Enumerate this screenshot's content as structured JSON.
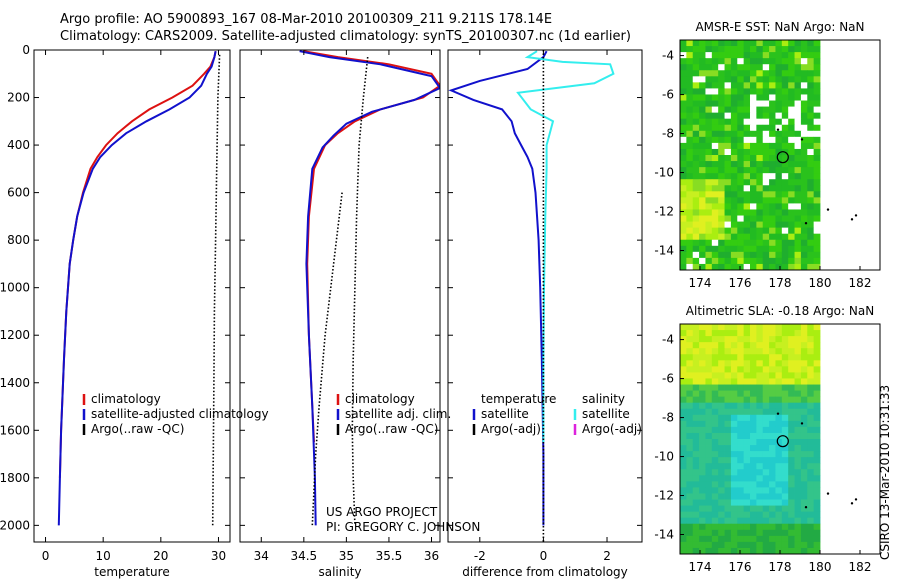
{
  "header": {
    "line1": "Argo profile: AO 5900893_167 08-Mar-2010 20100309_211 9.211S 178.14E",
    "line2": "Climatology: CARS2009. Satellite-adjusted climatology: synTS_20100307.nc (1d earlier)"
  },
  "footer": {
    "project": "US ARGO PROJECT",
    "pi": "PI: GREGORY C. JOHNSON",
    "stamp": "CSIRO 13-Mar-2010 10:31:33"
  },
  "colors": {
    "red": "#dd1111",
    "blue": "#1111cc",
    "cyan": "#33eeee",
    "magenta": "#dd22dd",
    "black": "#000000"
  },
  "chart_data": [
    {
      "id": "temperature",
      "type": "line",
      "xlabel": "temperature",
      "ylabel": "",
      "xlim": [
        -2,
        32
      ],
      "ylim": [
        2070,
        0
      ],
      "xticks": [
        0,
        10,
        20,
        30
      ],
      "yticks": [
        0,
        200,
        400,
        600,
        800,
        1000,
        1200,
        1400,
        1600,
        1800,
        2000
      ],
      "legend": [
        "climatology",
        "satellite-adjusted climatology",
        "Argo(..raw -QC)"
      ],
      "series": [
        {
          "name": "climatology",
          "color": "red",
          "style": "solid",
          "x": [
            29.5,
            29.3,
            28.6,
            27.5,
            25.5,
            22,
            18,
            15,
            12.5,
            10.5,
            9,
            7.8,
            6.5,
            5.5,
            4.8,
            4.2,
            3.6,
            3.2,
            2.7,
            2.5
          ],
          "y": [
            5,
            30,
            70,
            100,
            150,
            200,
            250,
            300,
            350,
            400,
            450,
            500,
            600,
            700,
            800,
            900,
            1100,
            1300,
            1600,
            1800
          ]
        },
        {
          "name": "satellite-adjusted climatology",
          "color": "blue",
          "style": "solid",
          "x": [
            29.5,
            29.3,
            28.8,
            28,
            27,
            25,
            21.5,
            17.5,
            14,
            11.5,
            9.5,
            8.2,
            6.6,
            5.5,
            4.8,
            4.2,
            3.6,
            3.2,
            2.7,
            2.5,
            2.3
          ],
          "y": [
            5,
            30,
            70,
            100,
            150,
            200,
            250,
            300,
            350,
            400,
            450,
            500,
            600,
            700,
            800,
            900,
            1100,
            1300,
            1600,
            1800,
            2000
          ]
        },
        {
          "name": "Argo(..raw -QC)",
          "color": "black",
          "style": "dotted",
          "x": [
            30.2,
            29.9,
            29.7,
            29.5,
            29.3,
            29.2,
            29.1,
            29
          ],
          "y": [
            20,
            200,
            500,
            800,
            1100,
            1400,
            1700,
            2000
          ]
        }
      ]
    },
    {
      "id": "salinity",
      "type": "line",
      "xlabel": "salinity",
      "ylabel": "",
      "xlim": [
        33.75,
        36.1
      ],
      "ylim": [
        2070,
        0
      ],
      "xticks": [
        34,
        34.5,
        35,
        35.5,
        36
      ],
      "xticklabels": [
        "34",
        "34.5",
        "35",
        "35.5",
        "36"
      ],
      "legend": [
        "climatology",
        "satellite adj. clim.",
        "Argo(..raw -QC)"
      ],
      "series": [
        {
          "name": "climatology",
          "color": "red",
          "style": "solid",
          "x": [
            34.5,
            34.9,
            35.5,
            36,
            36.1,
            35.9,
            35.4,
            35.1,
            34.9,
            34.75,
            34.62,
            34.56,
            34.54,
            34.56,
            34.6,
            34.62
          ],
          "y": [
            5,
            30,
            60,
            100,
            150,
            200,
            250,
            300,
            350,
            400,
            500,
            700,
            900,
            1200,
            1500,
            1650
          ]
        },
        {
          "name": "satellite adj. clim.",
          "color": "blue",
          "style": "solid",
          "x": [
            34.45,
            34.8,
            35.4,
            36,
            36.1,
            35.8,
            35.3,
            35,
            34.85,
            34.72,
            34.6,
            34.55,
            34.53,
            34.56,
            34.6,
            34.63,
            34.64
          ],
          "y": [
            5,
            30,
            60,
            110,
            160,
            210,
            260,
            310,
            360,
            410,
            500,
            700,
            900,
            1200,
            1500,
            1800,
            2000
          ]
        },
        {
          "name": "Argo(..raw -QC)",
          "color": "black",
          "style": "dotted",
          "x": [
            35.25,
            35.2,
            35.15,
            35.12,
            35.1,
            35.08,
            35.07,
            35.08,
            35.1
          ],
          "y": [
            30,
            200,
            400,
            700,
            1000,
            1300,
            1600,
            1800,
            2000
          ]
        },
        {
          "name": "Argo(..raw -QC) deep",
          "color": "black",
          "style": "dotted",
          "x": [
            34.95,
            34.85,
            34.75,
            34.68,
            34.64,
            34.62,
            34.6
          ],
          "y": [
            600,
            900,
            1200,
            1500,
            1700,
            1850,
            2000
          ]
        }
      ]
    },
    {
      "id": "difference",
      "type": "line",
      "xlabel": "difference from climatology",
      "ylabel": "",
      "xlim": [
        -3,
        3.1
      ],
      "ylim": [
        2070,
        0
      ],
      "xticks": [
        -2,
        0,
        2
      ],
      "legend_titles": [
        "temperature",
        "salinity"
      ],
      "legend": [
        "satellite",
        "Argo(-adj)",
        "satellite",
        "Argo(-adj)"
      ],
      "series": [
        {
          "name": "temperature satellite",
          "color": "blue",
          "style": "solid",
          "x": [
            0.1,
            0,
            -0.5,
            -2,
            -2.9,
            -2.2,
            -1.3,
            -1,
            -0.9,
            -0.7,
            -0.5,
            -0.35,
            -0.25,
            -0.15,
            -0.1,
            -0.05,
            0,
            0
          ],
          "y": [
            5,
            30,
            80,
            130,
            170,
            210,
            250,
            300,
            350,
            400,
            450,
            500,
            600,
            800,
            1000,
            1300,
            1700,
            2000
          ]
        },
        {
          "name": "salinity satellite",
          "color": "cyan",
          "style": "solid",
          "x": [
            -0.2,
            -0.5,
            0.6,
            2.1,
            2.2,
            1.6,
            -0.8,
            -0.4,
            0.3,
            0.1,
            0.1,
            0.06,
            0.02,
            0,
            0
          ],
          "y": [
            5,
            30,
            50,
            60,
            100,
            140,
            180,
            250,
            300,
            400,
            500,
            700,
            1000,
            1300,
            1650
          ]
        },
        {
          "name": "zero line",
          "color": "black",
          "style": "dotted",
          "x": [
            0,
            0
          ],
          "y": [
            0,
            2070
          ]
        }
      ]
    },
    {
      "id": "sst_map",
      "type": "heatmap",
      "title": "AMSR-E SST: NaN Argo: NaN",
      "xlim": [
        173,
        183
      ],
      "ylim": [
        -15,
        -3.2
      ],
      "xticks": [
        174,
        176,
        178,
        180,
        182
      ],
      "yticks": [
        -4,
        -6,
        -8,
        -10,
        -12,
        -14
      ],
      "argo_position": [
        178.14,
        -9.211
      ],
      "data_extent_lon": [
        173,
        180
      ],
      "palette": "green-yellow"
    },
    {
      "id": "sla_map",
      "type": "heatmap",
      "title": "Altimetric SLA: -0.18 Argo: NaN",
      "xlim": [
        173,
        183
      ],
      "ylim": [
        -15,
        -3.2
      ],
      "xticks": [
        174,
        176,
        178,
        180,
        182
      ],
      "yticks": [
        -4,
        -6,
        -8,
        -10,
        -12,
        -14
      ],
      "argo_position": [
        178.14,
        -9.211
      ],
      "data_extent_lon": [
        173,
        180
      ],
      "palette": "cyan-green-yellow"
    }
  ]
}
